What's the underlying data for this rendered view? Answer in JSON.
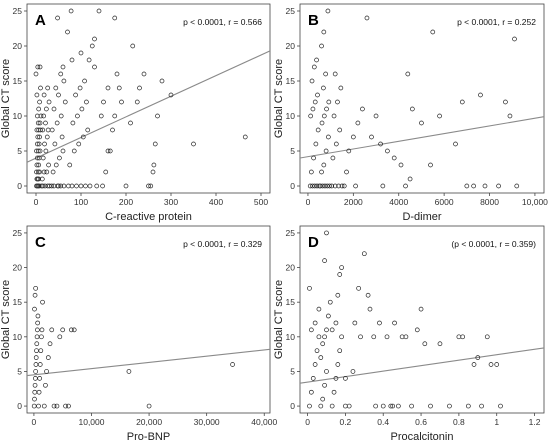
{
  "chart_data": [
    {
      "type": "scatter",
      "panel_letter": "A",
      "stat_text": "p < 0.0001, r = 0.566",
      "xlabel": "C-reactive protein",
      "ylabel": "Global CT score",
      "xlim": [
        -20,
        520
      ],
      "ylim": [
        -1,
        26
      ],
      "xticks": [
        0,
        100,
        200,
        300,
        400,
        500
      ],
      "xtick_labels": [
        "0",
        "100",
        "200",
        "300",
        "400",
        "500"
      ],
      "yticks": [
        0,
        5,
        10,
        15,
        20,
        25
      ],
      "ytick_labels": [
        "0",
        "5",
        "10",
        "15",
        "20",
        "25"
      ],
      "fit_line": {
        "x": [
          -20,
          520
        ],
        "y": [
          3.4,
          19.3
        ]
      },
      "points": [
        [
          1,
          0
        ],
        [
          3,
          0
        ],
        [
          5,
          0
        ],
        [
          7,
          0
        ],
        [
          2,
          1
        ],
        [
          4,
          1
        ],
        [
          6,
          1
        ],
        [
          1,
          2
        ],
        [
          5,
          2
        ],
        [
          8,
          2
        ],
        [
          2,
          3
        ],
        [
          6,
          3
        ],
        [
          3,
          4
        ],
        [
          7,
          4
        ],
        [
          1,
          5
        ],
        [
          5,
          5
        ],
        [
          9,
          5
        ],
        [
          3,
          6
        ],
        [
          7,
          6
        ],
        [
          4,
          7
        ],
        [
          8,
          7
        ],
        [
          2,
          8
        ],
        [
          6,
          8
        ],
        [
          10,
          8
        ],
        [
          5,
          9
        ],
        [
          9,
          9
        ],
        [
          3,
          10
        ],
        [
          11,
          10
        ],
        [
          6,
          11
        ],
        [
          8,
          12
        ],
        [
          2,
          13
        ],
        [
          10,
          14
        ],
        [
          0,
          16
        ],
        [
          4,
          17
        ],
        [
          9,
          17
        ],
        [
          12,
          0
        ],
        [
          15,
          0
        ],
        [
          20,
          0
        ],
        [
          26,
          0
        ],
        [
          30,
          0
        ],
        [
          14,
          1
        ],
        [
          18,
          2
        ],
        [
          24,
          2
        ],
        [
          28,
          3
        ],
        [
          16,
          4
        ],
        [
          22,
          5
        ],
        [
          19,
          6
        ],
        [
          25,
          7
        ],
        [
          15,
          8
        ],
        [
          27,
          8
        ],
        [
          21,
          9
        ],
        [
          17,
          10
        ],
        [
          23,
          11
        ],
        [
          29,
          12
        ],
        [
          18,
          13
        ],
        [
          26,
          14
        ],
        [
          35,
          0
        ],
        [
          40,
          0
        ],
        [
          48,
          0
        ],
        [
          55,
          0
        ],
        [
          62,
          0
        ],
        [
          38,
          2
        ],
        [
          45,
          3
        ],
        [
          52,
          4
        ],
        [
          60,
          5
        ],
        [
          42,
          6
        ],
        [
          58,
          7
        ],
        [
          36,
          8
        ],
        [
          47,
          9
        ],
        [
          56,
          10
        ],
        [
          40,
          11
        ],
        [
          65,
          12
        ],
        [
          50,
          13
        ],
        [
          44,
          14
        ],
        [
          62,
          15
        ],
        [
          55,
          16
        ],
        [
          48,
          24
        ],
        [
          70,
          22
        ],
        [
          78,
          25
        ],
        [
          72,
          0
        ],
        [
          80,
          0
        ],
        [
          90,
          0
        ],
        [
          100,
          0
        ],
        [
          110,
          0
        ],
        [
          75,
          3
        ],
        [
          85,
          5
        ],
        [
          95,
          6
        ],
        [
          105,
          7
        ],
        [
          115,
          8
        ],
        [
          82,
          9
        ],
        [
          92,
          10
        ],
        [
          102,
          11
        ],
        [
          112,
          12
        ],
        [
          88,
          13
        ],
        [
          98,
          14
        ],
        [
          108,
          15
        ],
        [
          118,
          18
        ],
        [
          125,
          20
        ],
        [
          130,
          21
        ],
        [
          140,
          25
        ],
        [
          100,
          19
        ],
        [
          145,
          10
        ],
        [
          150,
          12
        ],
        [
          160,
          14
        ],
        [
          120,
          0
        ],
        [
          135,
          0
        ],
        [
          148,
          0
        ],
        [
          155,
          2
        ],
        [
          165,
          5
        ],
        [
          170,
          8
        ],
        [
          175,
          10
        ],
        [
          180,
          16
        ],
        [
          185,
          14
        ],
        [
          190,
          12
        ],
        [
          175,
          24
        ],
        [
          200,
          0
        ],
        [
          210,
          9
        ],
        [
          215,
          20
        ],
        [
          225,
          12
        ],
        [
          230,
          14
        ],
        [
          240,
          16
        ],
        [
          250,
          0
        ],
        [
          255,
          0
        ],
        [
          260,
          2
        ],
        [
          262,
          3
        ],
        [
          265,
          6
        ],
        [
          270,
          10
        ],
        [
          280,
          15
        ],
        [
          300,
          13
        ],
        [
          350,
          6
        ],
        [
          465,
          7
        ],
        [
          80,
          18
        ],
        [
          60,
          17
        ],
        [
          130,
          17
        ],
        [
          160,
          5
        ],
        [
          50,
          0
        ]
      ]
    },
    {
      "type": "scatter",
      "panel_letter": "B",
      "stat_text": "p < 0.0001, r = 0.252",
      "xlabel": "D-dimer",
      "ylabel": "Global CT score",
      "xlim": [
        -350,
        10400
      ],
      "ylim": [
        -1,
        26
      ],
      "xticks": [
        0,
        2000,
        4000,
        6000,
        8000,
        10000
      ],
      "xtick_labels": [
        "0",
        "2000",
        "4000",
        "6000",
        "8000",
        "10,000"
      ],
      "yticks": [
        0,
        5,
        10,
        15,
        20,
        25
      ],
      "ytick_labels": [
        "0",
        "5",
        "10",
        "15",
        "20",
        "25"
      ],
      "fit_line": {
        "x": [
          -350,
          10400
        ],
        "y": [
          4.0,
          9.9
        ]
      },
      "points": [
        [
          100,
          0
        ],
        [
          200,
          0
        ],
        [
          300,
          0
        ],
        [
          400,
          0
        ],
        [
          500,
          0
        ],
        [
          150,
          2
        ],
        [
          250,
          4
        ],
        [
          350,
          6
        ],
        [
          450,
          8
        ],
        [
          120,
          10
        ],
        [
          220,
          11
        ],
        [
          320,
          12
        ],
        [
          420,
          13
        ],
        [
          180,
          15
        ],
        [
          280,
          17
        ],
        [
          380,
          18
        ],
        [
          550,
          0
        ],
        [
          650,
          0
        ],
        [
          750,
          0
        ],
        [
          850,
          0
        ],
        [
          950,
          0
        ],
        [
          600,
          2
        ],
        [
          700,
          3
        ],
        [
          800,
          5
        ],
        [
          900,
          7
        ],
        [
          620,
          9
        ],
        [
          720,
          10
        ],
        [
          820,
          11
        ],
        [
          920,
          12
        ],
        [
          680,
          14
        ],
        [
          780,
          16
        ],
        [
          600,
          20
        ],
        [
          700,
          22
        ],
        [
          880,
          25
        ],
        [
          1050,
          0
        ],
        [
          1200,
          0
        ],
        [
          1350,
          0
        ],
        [
          1100,
          4
        ],
        [
          1250,
          6
        ],
        [
          1400,
          8
        ],
        [
          1150,
          10
        ],
        [
          1300,
          12
        ],
        [
          1450,
          14
        ],
        [
          1200,
          16
        ],
        [
          1500,
          0
        ],
        [
          1600,
          0
        ],
        [
          1700,
          2
        ],
        [
          1800,
          5
        ],
        [
          2000,
          7
        ],
        [
          2200,
          9
        ],
        [
          2400,
          11
        ],
        [
          2600,
          24
        ],
        [
          2800,
          7
        ],
        [
          3000,
          10
        ],
        [
          3200,
          6
        ],
        [
          3500,
          5
        ],
        [
          3800,
          4
        ],
        [
          4100,
          3
        ],
        [
          4400,
          16
        ],
        [
          4600,
          11
        ],
        [
          4300,
          0
        ],
        [
          4500,
          1
        ],
        [
          5000,
          9
        ],
        [
          5500,
          22
        ],
        [
          5800,
          10
        ],
        [
          6500,
          6
        ],
        [
          6800,
          12
        ],
        [
          7000,
          0
        ],
        [
          7300,
          0
        ],
        [
          7600,
          13
        ],
        [
          7800,
          0
        ],
        [
          8400,
          0
        ],
        [
          8700,
          12
        ],
        [
          8900,
          10
        ],
        [
          9100,
          21
        ],
        [
          9200,
          0
        ],
        [
          2100,
          0
        ],
        [
          3300,
          0
        ],
        [
          5400,
          3
        ]
      ]
    },
    {
      "type": "scatter",
      "panel_letter": "C",
      "stat_text": "p < 0.0001, r = 0.329",
      "xlabel": "Pro-BNP",
      "ylabel": "Global CT score",
      "xlim": [
        -1200,
        41000
      ],
      "ylim": [
        -1,
        26
      ],
      "xticks": [
        0,
        10000,
        20000,
        30000,
        40000
      ],
      "xtick_labels": [
        "0",
        "10,000",
        "20,000",
        "30,000",
        "40,000"
      ],
      "yticks": [
        0,
        5,
        10,
        15,
        20,
        25
      ],
      "ytick_labels": [
        "0",
        "5",
        "10",
        "15",
        "20",
        "25"
      ],
      "fit_line": {
        "x": [
          -1200,
          41000
        ],
        "y": [
          4.4,
          8.2
        ]
      },
      "points": [
        [
          50,
          0
        ],
        [
          100,
          1
        ],
        [
          150,
          2
        ],
        [
          200,
          3
        ],
        [
          250,
          4
        ],
        [
          300,
          5
        ],
        [
          350,
          6
        ],
        [
          400,
          7
        ],
        [
          450,
          8
        ],
        [
          500,
          9
        ],
        [
          550,
          10
        ],
        [
          600,
          11
        ],
        [
          650,
          12
        ],
        [
          700,
          13
        ],
        [
          100,
          14
        ],
        [
          200,
          16
        ],
        [
          300,
          17
        ],
        [
          800,
          0
        ],
        [
          900,
          2
        ],
        [
          1000,
          4
        ],
        [
          1100,
          6
        ],
        [
          1200,
          8
        ],
        [
          1300,
          10
        ],
        [
          1400,
          11
        ],
        [
          1500,
          15
        ],
        [
          1800,
          0
        ],
        [
          2000,
          3
        ],
        [
          2200,
          5
        ],
        [
          2500,
          7
        ],
        [
          2800,
          9
        ],
        [
          3100,
          11
        ],
        [
          3500,
          0
        ],
        [
          4000,
          0
        ],
        [
          4500,
          10
        ],
        [
          5000,
          11
        ],
        [
          6500,
          11
        ],
        [
          7000,
          11
        ],
        [
          5500,
          0
        ],
        [
          6000,
          0
        ],
        [
          16500,
          5
        ],
        [
          20000,
          0
        ],
        [
          34500,
          6
        ]
      ]
    },
    {
      "type": "scatter",
      "panel_letter": "D",
      "stat_text": "(p < 0.0001, r = 0.359)",
      "xlabel": "Procalcitonin",
      "ylabel": "Global CT score",
      "xlim": [
        -0.04,
        1.25
      ],
      "ylim": [
        -1,
        26
      ],
      "xticks": [
        0,
        0.2,
        0.4,
        0.6,
        0.8,
        1.0,
        1.2
      ],
      "xtick_labels": [
        "0",
        "0.2",
        "0.4",
        "0.6",
        "0.8",
        "1",
        "1.2"
      ],
      "yticks": [
        0,
        5,
        10,
        15,
        20,
        25
      ],
      "ytick_labels": [
        "0",
        "5",
        "10",
        "15",
        "20",
        "25"
      ],
      "fit_line": {
        "x": [
          -0.04,
          1.25
        ],
        "y": [
          3.3,
          8.4
        ]
      },
      "points": [
        [
          0.01,
          0
        ],
        [
          0.02,
          2
        ],
        [
          0.03,
          4
        ],
        [
          0.04,
          6
        ],
        [
          0.05,
          8
        ],
        [
          0.06,
          10
        ],
        [
          0.02,
          11
        ],
        [
          0.04,
          12
        ],
        [
          0.01,
          17
        ],
        [
          0.06,
          14
        ],
        [
          0.07,
          0
        ],
        [
          0.08,
          1
        ],
        [
          0.09,
          3
        ],
        [
          0.1,
          5
        ],
        [
          0.07,
          7
        ],
        [
          0.08,
          9
        ],
        [
          0.09,
          10
        ],
        [
          0.1,
          11
        ],
        [
          0.11,
          13
        ],
        [
          0.12,
          15
        ],
        [
          0.1,
          25
        ],
        [
          0.09,
          21
        ],
        [
          0.13,
          0
        ],
        [
          0.14,
          2
        ],
        [
          0.15,
          4
        ],
        [
          0.16,
          6
        ],
        [
          0.17,
          8
        ],
        [
          0.18,
          10
        ],
        [
          0.13,
          11
        ],
        [
          0.15,
          12
        ],
        [
          0.16,
          16
        ],
        [
          0.17,
          19
        ],
        [
          0.18,
          20
        ],
        [
          0.2,
          0
        ],
        [
          0.22,
          0
        ],
        [
          0.24,
          5
        ],
        [
          0.25,
          12
        ],
        [
          0.27,
          17
        ],
        [
          0.28,
          10
        ],
        [
          0.3,
          22
        ],
        [
          0.32,
          16
        ],
        [
          0.33,
          14
        ],
        [
          0.35,
          10
        ],
        [
          0.36,
          0
        ],
        [
          0.38,
          12
        ],
        [
          0.4,
          0
        ],
        [
          0.42,
          10
        ],
        [
          0.44,
          0
        ],
        [
          0.46,
          12
        ],
        [
          0.48,
          0
        ],
        [
          0.5,
          10
        ],
        [
          0.52,
          10
        ],
        [
          0.55,
          0
        ],
        [
          0.58,
          11
        ],
        [
          0.6,
          14
        ],
        [
          0.62,
          9
        ],
        [
          0.65,
          0
        ],
        [
          0.7,
          9
        ],
        [
          0.75,
          0
        ],
        [
          0.8,
          10
        ],
        [
          0.82,
          10
        ],
        [
          0.85,
          0
        ],
        [
          0.9,
          7
        ],
        [
          0.92,
          0
        ],
        [
          0.95,
          10
        ],
        [
          0.97,
          6
        ],
        [
          1.0,
          6
        ],
        [
          1.02,
          0
        ],
        [
          0.88,
          6
        ],
        [
          0.2,
          4
        ],
        [
          0.45,
          0
        ]
      ]
    }
  ]
}
